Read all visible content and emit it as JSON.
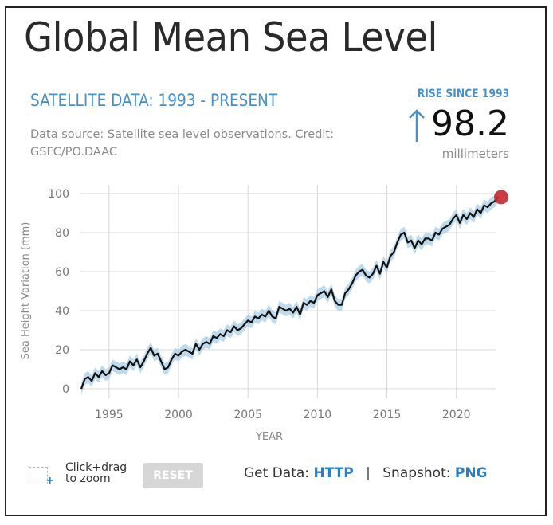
{
  "title": "Global Mean Sea Level",
  "subtitle": "SATELLITE DATA: 1993 - PRESENT",
  "source": "Data source: Satellite sea level observations. Credit: GSFC/PO.DAAC",
  "rise": {
    "label": "RISE SINCE 1993",
    "value": "98.2",
    "unit": "millimeters",
    "arrow_icon": "up-arrow-icon"
  },
  "colors": {
    "accent": "#4a90c4",
    "link": "#2a7fc0",
    "line": "#111111",
    "band": "#a9cde6",
    "marker": "#c0282d",
    "grid": "#d8d8d8"
  },
  "controls": {
    "zoom_hint_line1": "Click+drag",
    "zoom_hint_line2": "to zoom",
    "reset_label": "RESET",
    "get_data_label": "Get Data:",
    "get_data_link": "HTTP",
    "separator": "|",
    "snapshot_label": "Snapshot:",
    "snapshot_link": "PNG"
  },
  "chart_data": {
    "type": "line",
    "title": "Global Mean Sea Level",
    "xlabel": "YEAR",
    "ylabel": "Sea Height Variation (mm)",
    "xlim": [
      1993,
      2023
    ],
    "ylim": [
      0,
      100
    ],
    "xticks": [
      1995,
      2000,
      2005,
      2010,
      2015,
      2020
    ],
    "yticks": [
      0,
      20,
      40,
      60,
      80,
      100
    ],
    "grid": true,
    "uncertainty_band_mm": 3,
    "series": [
      {
        "name": "Sea Height Variation",
        "x": [
          1993.0,
          1993.25,
          1993.5,
          1993.75,
          1994.0,
          1994.25,
          1994.5,
          1994.75,
          1995.0,
          1995.25,
          1995.5,
          1995.75,
          1996.0,
          1996.25,
          1996.5,
          1996.75,
          1997.0,
          1997.25,
          1997.5,
          1997.75,
          1998.0,
          1998.25,
          1998.5,
          1998.75,
          1999.0,
          1999.25,
          1999.5,
          1999.75,
          2000.0,
          2000.25,
          2000.5,
          2000.75,
          2001.0,
          2001.25,
          2001.5,
          2001.75,
          2002.0,
          2002.25,
          2002.5,
          2002.75,
          2003.0,
          2003.25,
          2003.5,
          2003.75,
          2004.0,
          2004.25,
          2004.5,
          2004.75,
          2005.0,
          2005.25,
          2005.5,
          2005.75,
          2006.0,
          2006.25,
          2006.5,
          2006.75,
          2007.0,
          2007.25,
          2007.5,
          2007.75,
          2008.0,
          2008.25,
          2008.5,
          2008.75,
          2009.0,
          2009.25,
          2009.5,
          2009.75,
          2010.0,
          2010.25,
          2010.5,
          2010.75,
          2011.0,
          2011.25,
          2011.5,
          2011.75,
          2012.0,
          2012.25,
          2012.5,
          2012.75,
          2013.0,
          2013.25,
          2013.5,
          2013.75,
          2014.0,
          2014.25,
          2014.5,
          2014.75,
          2015.0,
          2015.25,
          2015.5,
          2015.75,
          2016.0,
          2016.25,
          2016.5,
          2016.75,
          2017.0,
          2017.25,
          2017.5,
          2017.75,
          2018.0,
          2018.25,
          2018.5,
          2018.75,
          2019.0,
          2019.25,
          2019.5,
          2019.75,
          2020.0,
          2020.25,
          2020.5,
          2020.75,
          2021.0,
          2021.25,
          2021.5,
          2021.75,
          2022.0,
          2022.25,
          2022.5,
          2022.75
        ],
        "values": [
          0,
          5,
          6,
          4,
          8,
          6,
          9,
          7,
          8,
          12,
          11,
          10,
          11,
          10,
          14,
          12,
          15,
          11,
          14,
          18,
          21,
          17,
          18,
          14,
          10,
          11,
          15,
          18,
          17,
          19,
          20,
          19,
          18,
          23,
          20,
          23,
          24,
          23,
          27,
          26,
          28,
          27,
          30,
          29,
          32,
          30,
          31,
          33,
          35,
          34,
          37,
          36,
          38,
          37,
          40,
          37,
          36,
          42,
          41,
          40,
          41,
          39,
          42,
          38,
          44,
          43,
          45,
          44,
          48,
          49,
          50,
          47,
          51,
          45,
          43,
          43,
          49,
          51,
          54,
          58,
          60,
          61,
          58,
          57,
          59,
          63,
          59,
          65,
          62,
          68,
          70,
          75,
          79,
          80,
          75,
          76,
          72,
          76,
          74,
          77,
          77,
          76,
          80,
          79,
          82,
          83,
          84,
          87,
          89,
          85,
          89,
          87,
          90,
          88,
          92,
          90,
          94,
          93,
          95,
          96
        ]
      }
    ],
    "end_marker": {
      "x": 2023.0,
      "y": 98.2
    }
  }
}
